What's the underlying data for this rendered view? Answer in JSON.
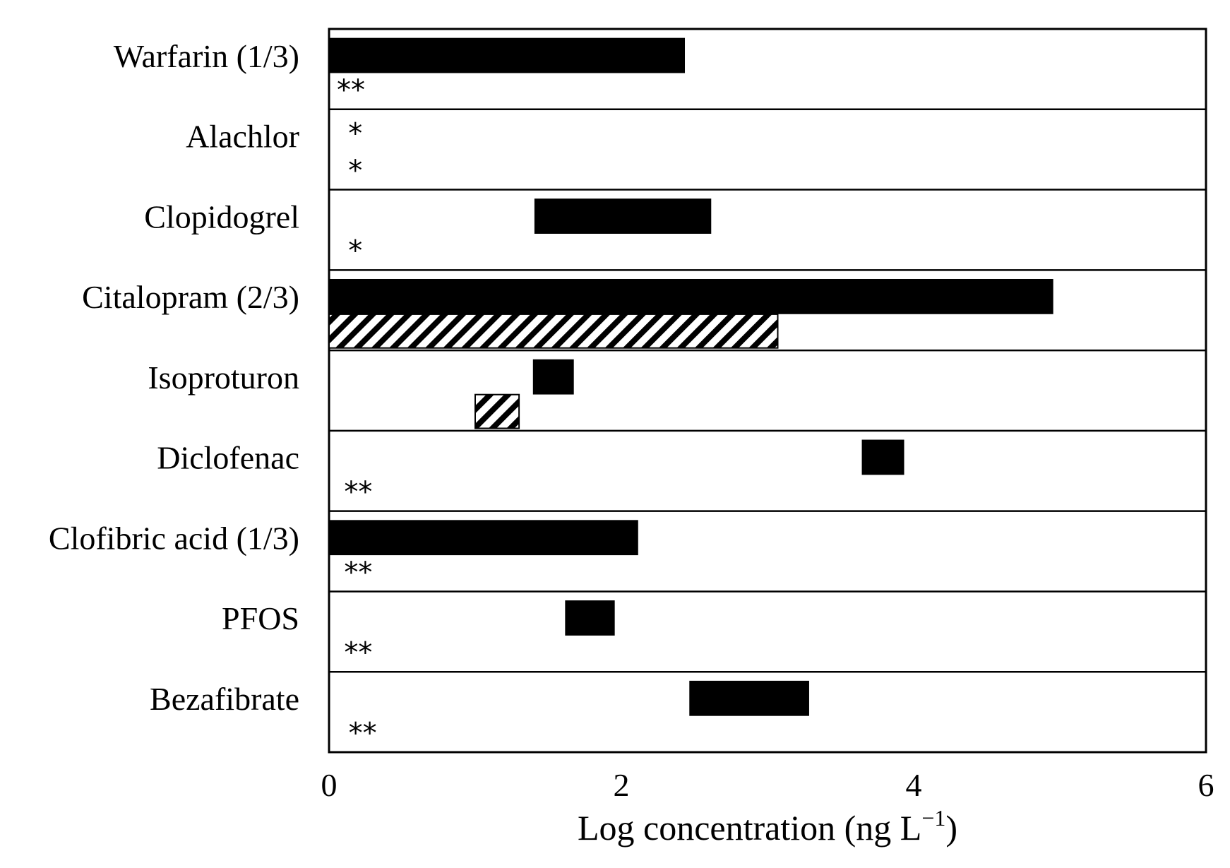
{
  "chart_data": {
    "type": "bar",
    "orientation": "horizontal-floating",
    "xlabel": "Log concentration (ng L",
    "xlabel_sup": "−1",
    "xlabel_tail": ")",
    "xlim": [
      0,
      6
    ],
    "xticks": [
      "0",
      "2",
      "4",
      "6"
    ],
    "grid": false,
    "legend": null,
    "colors": {
      "solid": "#000000",
      "hatched_fg": "#000000",
      "hatched_bg": "#ffffff"
    },
    "categories": [
      {
        "label": "Warfarin (1/3)",
        "bars": [
          {
            "style": "solid",
            "start": 0.0,
            "end": 2.43
          }
        ],
        "markers": [
          {
            "text": "**",
            "x": 0.15,
            "slot": "lower"
          }
        ]
      },
      {
        "label": "Alachlor",
        "bars": [],
        "markers": [
          {
            "text": "*",
            "x": 0.18,
            "slot": "upper"
          },
          {
            "text": "*",
            "x": 0.18,
            "slot": "lower"
          }
        ]
      },
      {
        "label": "Clopidogrel",
        "bars": [
          {
            "style": "solid",
            "start": 1.41,
            "end": 2.61
          }
        ],
        "markers": [
          {
            "text": "*",
            "x": 0.18,
            "slot": "lower"
          }
        ]
      },
      {
        "label": "Citalopram (2/3)",
        "bars": [
          {
            "style": "solid",
            "start": 0.0,
            "end": 4.95
          },
          {
            "style": "hatched",
            "start": 0.0,
            "end": 3.07
          }
        ],
        "markers": []
      },
      {
        "label": "Isoproturon",
        "bars": [
          {
            "style": "solid",
            "start": 1.4,
            "end": 1.67
          },
          {
            "style": "hatched",
            "start": 1.0,
            "end": 1.3
          }
        ],
        "markers": []
      },
      {
        "label": "Diclofenac",
        "bars": [
          {
            "style": "solid",
            "start": 3.65,
            "end": 3.93
          }
        ],
        "markers": [
          {
            "text": "**",
            "x": 0.2,
            "slot": "lower"
          }
        ]
      },
      {
        "label": "Clofibric acid (1/3)",
        "bars": [
          {
            "style": "solid",
            "start": 0.0,
            "end": 2.11
          }
        ],
        "markers": [
          {
            "text": "**",
            "x": 0.2,
            "slot": "lower"
          }
        ]
      },
      {
        "label": "PFOS",
        "bars": [
          {
            "style": "solid",
            "start": 1.62,
            "end": 1.95
          }
        ],
        "markers": [
          {
            "text": "**",
            "x": 0.2,
            "slot": "lower"
          }
        ]
      },
      {
        "label": "Bezafibrate",
        "bars": [
          {
            "style": "solid",
            "start": 2.47,
            "end": 3.28
          }
        ],
        "markers": [
          {
            "text": "**",
            "x": 0.23,
            "slot": "lower"
          }
        ]
      }
    ]
  }
}
